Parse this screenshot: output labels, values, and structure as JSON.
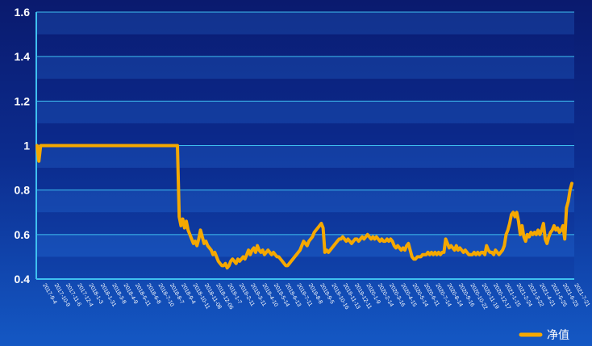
{
  "chart_data": {
    "type": "line",
    "title": "",
    "xlabel": "",
    "ylabel": "",
    "ylim": [
      0.4,
      1.6
    ],
    "yticks": [
      "0.4",
      "0.6",
      "0.8",
      "1",
      "1.2",
      "1.4",
      "1.6"
    ],
    "xticks": [
      "2017-9-4",
      "2017-10-9",
      "2017-11-6",
      "2017-12-4",
      "2018-1-3",
      "2018-1-31",
      "2018-3-8",
      "2018-4-9",
      "2018-5-11",
      "2018-6-8",
      "2018-7-10",
      "2018-8-7",
      "2018-9-4",
      "2018-10-11",
      "2018-11-08",
      "2018-12-06",
      "2019-1-7",
      "2019-2-11",
      "2019-3-11",
      "2019-4-10",
      "2019-5-14",
      "2019-6-13",
      "2019-7-11",
      "2019-8-8",
      "2019-9-5",
      "2019-10-16",
      "2019-11-13",
      "2019-12-11",
      "2020-1-9",
      "2020-2-14",
      "2020-3-16",
      "2020-4-15",
      "2020-5-14",
      "2020-6-11",
      "2020-7-14",
      "2020-8-14",
      "2020-9-16",
      "2020-10-22",
      "2020-11-19",
      "2020-12-17",
      "2021-1-15",
      "2021-2-24",
      "2021-3-22",
      "2021-4-21",
      "2021-5-25",
      "2021-6-23",
      "2021-7-21"
    ],
    "grid": true,
    "legend_position": "bottom-right",
    "series": [
      {
        "name": "净值",
        "color": "#f5a800",
        "values": [
          1.0,
          0.93,
          1.0,
          1.0,
          1.0,
          1.0,
          1.0,
          1.0,
          1.0,
          1.0,
          1.0,
          1.0,
          1.0,
          1.0,
          1.0,
          1.0,
          1.0,
          1.0,
          1.0,
          1.0,
          1.0,
          1.0,
          1.0,
          1.0,
          1.0,
          1.0,
          1.0,
          1.0,
          1.0,
          1.0,
          1.0,
          1.0,
          1.0,
          1.0,
          1.0,
          1.0,
          1.0,
          1.0,
          1.0,
          1.0,
          1.0,
          1.0,
          1.0,
          1.0,
          1.0,
          1.0,
          1.0,
          1.0,
          1.0,
          1.0,
          1.0,
          1.0,
          1.0,
          1.0,
          1.0,
          1.0,
          1.0,
          1.0,
          1.0,
          1.0,
          1.0,
          1.0,
          1.0,
          1.0,
          1.0,
          1.0,
          1.0,
          1.0,
          1.0,
          1.0,
          1.0,
          1.0,
          1.0,
          1.0,
          1.0,
          1.0,
          1.0,
          1.0,
          1.0,
          1.0,
          0.68,
          0.64,
          0.67,
          0.63,
          0.66,
          0.62,
          0.6,
          0.58,
          0.56,
          0.57,
          0.55,
          0.58,
          0.62,
          0.59,
          0.56,
          0.57,
          0.55,
          0.54,
          0.53,
          0.51,
          0.52,
          0.5,
          0.48,
          0.47,
          0.46,
          0.46,
          0.47,
          0.45,
          0.46,
          0.48,
          0.49,
          0.48,
          0.47,
          0.49,
          0.48,
          0.49,
          0.5,
          0.49,
          0.51,
          0.53,
          0.51,
          0.53,
          0.54,
          0.52,
          0.55,
          0.53,
          0.52,
          0.53,
          0.51,
          0.52,
          0.53,
          0.52,
          0.51,
          0.52,
          0.51,
          0.5,
          0.5,
          0.49,
          0.48,
          0.47,
          0.46,
          0.46,
          0.47,
          0.48,
          0.49,
          0.5,
          0.51,
          0.52,
          0.53,
          0.55,
          0.57,
          0.56,
          0.55,
          0.57,
          0.58,
          0.59,
          0.61,
          0.62,
          0.63,
          0.64,
          0.65,
          0.63,
          0.52,
          0.53,
          0.52,
          0.53,
          0.54,
          0.55,
          0.56,
          0.57,
          0.58,
          0.58,
          0.59,
          0.58,
          0.57,
          0.58,
          0.57,
          0.56,
          0.57,
          0.58,
          0.58,
          0.57,
          0.58,
          0.59,
          0.58,
          0.59,
          0.6,
          0.59,
          0.58,
          0.59,
          0.58,
          0.59,
          0.58,
          0.57,
          0.58,
          0.57,
          0.57,
          0.58,
          0.57,
          0.58,
          0.57,
          0.55,
          0.54,
          0.55,
          0.54,
          0.53,
          0.54,
          0.53,
          0.55,
          0.56,
          0.53,
          0.5,
          0.49,
          0.49,
          0.5,
          0.5,
          0.5,
          0.51,
          0.51,
          0.51,
          0.52,
          0.51,
          0.52,
          0.51,
          0.52,
          0.51,
          0.52,
          0.51,
          0.52,
          0.52,
          0.58,
          0.56,
          0.54,
          0.55,
          0.54,
          0.53,
          0.55,
          0.53,
          0.54,
          0.53,
          0.52,
          0.53,
          0.52,
          0.51,
          0.51,
          0.51,
          0.52,
          0.51,
          0.52,
          0.51,
          0.52,
          0.52,
          0.51,
          0.55,
          0.53,
          0.52,
          0.52,
          0.51,
          0.53,
          0.52,
          0.51,
          0.52,
          0.53,
          0.55,
          0.6,
          0.62,
          0.65,
          0.69,
          0.7,
          0.68,
          0.7,
          0.66,
          0.6,
          0.64,
          0.59,
          0.57,
          0.6,
          0.59,
          0.61,
          0.6,
          0.61,
          0.6,
          0.62,
          0.6,
          0.62,
          0.65,
          0.58,
          0.56,
          0.59,
          0.61,
          0.62,
          0.64,
          0.62,
          0.63,
          0.61,
          0.62,
          0.64,
          0.58,
          0.72,
          0.75,
          0.8,
          0.83
        ]
      }
    ]
  }
}
